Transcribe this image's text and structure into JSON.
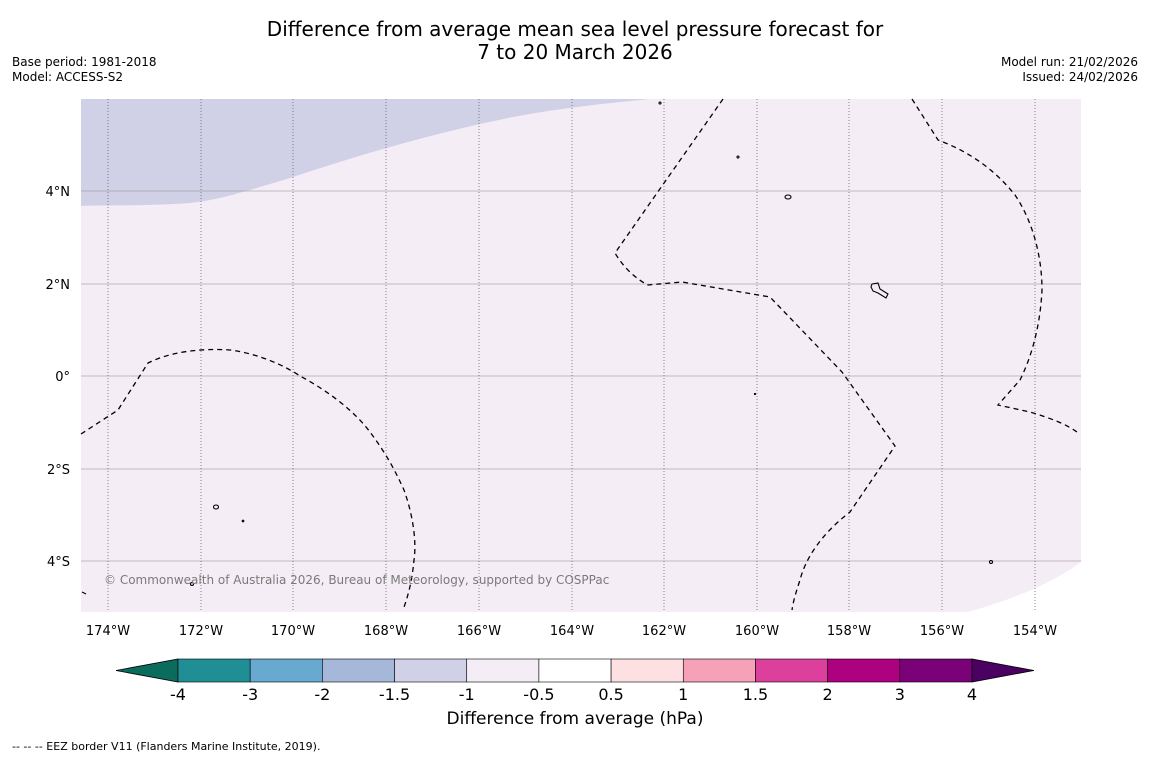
{
  "header": {
    "title_line1": "Difference from average mean sea level pressure forecast for",
    "title_line2": "7 to 20 March 2026",
    "base_period": "Base period: 1981-2018",
    "model": "Model: ACCESS-S2",
    "model_run": "Model run: 21/02/2026",
    "issued": "Issued: 24/02/2026"
  },
  "map": {
    "copyright": "© Commonwealth of Australia 2026, Bureau of Meteorology, supported by COSPPac",
    "lat_labels": [
      "4°N",
      "2°N",
      "0°",
      "2°S",
      "4°S"
    ],
    "lon_labels": [
      "174°W",
      "172°W",
      "170°W",
      "168°W",
      "166°W",
      "164°W",
      "162°W",
      "160°W",
      "158°W",
      "156°W",
      "154°W"
    ],
    "colors": {
      "background_anomaly": "#f4edf5",
      "low_anomaly": "#d0d1e6",
      "gridline": "#8a8a8a"
    }
  },
  "colorbar": {
    "title": "Difference from average (hPa)",
    "tick_labels": [
      "-4",
      "-3",
      "-2",
      "-1.5",
      "-1",
      "-0.5",
      "0.5",
      "1",
      "1.5",
      "2",
      "3",
      "4"
    ],
    "colors": [
      "#0b6b5c",
      "#1f8f95",
      "#67a9cf",
      "#a6b8da",
      "#d0d1e6",
      "#f4edf5",
      "#ffffff",
      "#fde0e2",
      "#f7a1b8",
      "#dd3f9c",
      "#ad0180",
      "#7a0177",
      "#4b0162"
    ]
  },
  "legend": {
    "eez_note": "--  --  -- EEZ border V11 (Flanders Marine Institute, 2019)."
  }
}
